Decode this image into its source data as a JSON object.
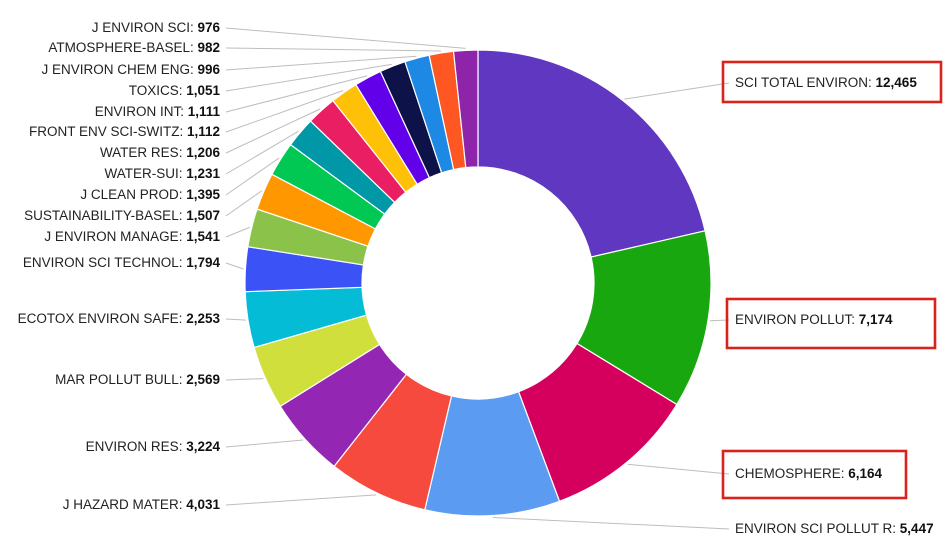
{
  "chart_data": {
    "type": "pie",
    "variant": "donut",
    "slices": [
      {
        "label": "SCI TOTAL ENVIRON",
        "value": 12465,
        "value_text": "12,465",
        "color": "#5f37c1",
        "highlighted": true
      },
      {
        "label": "ENVIRON POLLUT",
        "value": 7174,
        "value_text": "7,174",
        "color": "#18a70f",
        "highlighted": true
      },
      {
        "label": "CHEMOSPHERE",
        "value": 6164,
        "value_text": "6,164",
        "color": "#d5005d",
        "highlighted": true
      },
      {
        "label": "ENVIRON SCI POLLUT R",
        "value": 5447,
        "value_text": "5,447",
        "color": "#5b9cf2",
        "highlighted": false
      },
      {
        "label": "J HAZARD MATER",
        "value": 4031,
        "value_text": "4,031",
        "color": "#f74a3f",
        "highlighted": false
      },
      {
        "label": "ENVIRON RES",
        "value": 3224,
        "value_text": "3,224",
        "color": "#9426b4",
        "highlighted": false
      },
      {
        "label": "MAR POLLUT BULL",
        "value": 2569,
        "value_text": "2,569",
        "color": "#d1df3c",
        "highlighted": false
      },
      {
        "label": "ECOTOX ENVIRON SAFE",
        "value": 2253,
        "value_text": "2,253",
        "color": "#05bcd6",
        "highlighted": false
      },
      {
        "label": "ENVIRON SCI TECHNOL",
        "value": 1794,
        "value_text": "1,794",
        "color": "#3b53f6",
        "highlighted": false
      },
      {
        "label": "J ENVIRON MANAGE",
        "value": 1541,
        "value_text": "1,541",
        "color": "#8bc34a",
        "highlighted": false
      },
      {
        "label": "SUSTAINABILITY-BASEL",
        "value": 1507,
        "value_text": "1,507",
        "color": "#ff9800",
        "highlighted": false
      },
      {
        "label": "J CLEAN PROD",
        "value": 1395,
        "value_text": "1,395",
        "color": "#00c853",
        "highlighted": false
      },
      {
        "label": "WATER-SUI",
        "value": 1231,
        "value_text": "1,231",
        "color": "#0097a7",
        "highlighted": false
      },
      {
        "label": "WATER RES",
        "value": 1206,
        "value_text": "1,206",
        "color": "#e91e63",
        "highlighted": false
      },
      {
        "label": "FRONT ENV SCI-SWITZ",
        "value": 1112,
        "value_text": "1,112",
        "color": "#ffc107",
        "highlighted": false
      },
      {
        "label": "ENVIRON INT",
        "value": 1111,
        "value_text": "1,111",
        "color": "#6200ea",
        "highlighted": false
      },
      {
        "label": "TOXICS",
        "value": 1051,
        "value_text": "1,051",
        "color": "#0d1248",
        "highlighted": false
      },
      {
        "label": "J ENVIRON CHEM ENG",
        "value": 996,
        "value_text": "996",
        "color": "#1e88e5",
        "highlighted": false
      },
      {
        "label": "ATMOSPHERE-BASEL",
        "value": 982,
        "value_text": "982",
        "color": "#ff5722",
        "highlighted": false
      },
      {
        "label": "J ENVIRON SCI",
        "value": 976,
        "value_text": "976",
        "color": "#8e24aa",
        "highlighted": false
      }
    ],
    "highlight_color": "#d9221c",
    "leader_color": "#bdbdbd"
  }
}
